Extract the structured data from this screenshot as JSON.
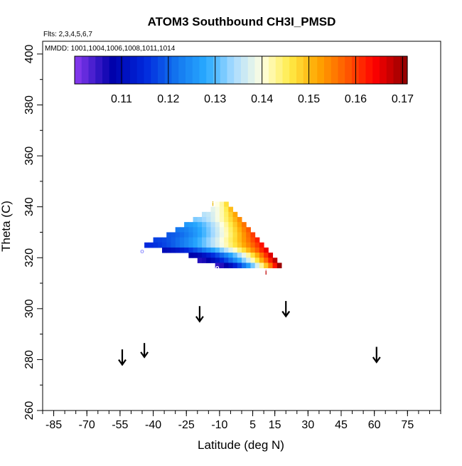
{
  "chart_data": {
    "type": "heatmap",
    "title": "ATOM3 Southbound CH3I_PMSD",
    "subtitle_flights": "Flts: 2,3,4,5,6,7",
    "subtitle_dates": "MMDD: 1001,1004,1006,1008,1011,1014",
    "xlabel": "Latitude (deg N)",
    "ylabel": "Theta (C)",
    "xlim": [
      -90,
      90
    ],
    "ylim": [
      260,
      405
    ],
    "x_ticks": [
      -85,
      -70,
      -55,
      -40,
      -25,
      -10,
      5,
      15,
      30,
      45,
      60,
      75
    ],
    "x_tick_labels": [
      "-85",
      "-70",
      "-55",
      "-40",
      "-25",
      "-10",
      "5",
      "15",
      "30",
      "45",
      "60",
      "75"
    ],
    "y_ticks": [
      260,
      280,
      300,
      320,
      340,
      360,
      380,
      400
    ],
    "y_tick_labels": [
      "260",
      "280",
      "300",
      "320",
      "340",
      "360",
      "380",
      "400"
    ],
    "colorbar": {
      "min": 0.1,
      "max": 0.171,
      "ticks": [
        0.11,
        0.12,
        0.13,
        0.14,
        0.15,
        0.16,
        0.17
      ],
      "tick_labels": [
        "0.11",
        "0.12",
        "0.13",
        "0.14",
        "0.15",
        "0.16",
        "0.17"
      ]
    },
    "grid_cells": {
      "x_step": 2,
      "y_step": 2,
      "rows": [
        {
          "theta": 340,
          "x_start": -12,
          "x_end": -8,
          "v_start": 0.14,
          "v_end": 0.147
        },
        {
          "theta": 338,
          "x_start": -14,
          "x_end": -6,
          "v_start": 0.138,
          "v_end": 0.15
        },
        {
          "theta": 336,
          "x_start": -18,
          "x_end": -4,
          "v_start": 0.135,
          "v_end": 0.152
        },
        {
          "theta": 334,
          "x_start": -22,
          "x_end": -2,
          "v_start": 0.132,
          "v_end": 0.154
        },
        {
          "theta": 332,
          "x_start": -26,
          "x_end": 0,
          "v_start": 0.126,
          "v_end": 0.156
        },
        {
          "theta": 330,
          "x_start": -30,
          "x_end": 2,
          "v_start": 0.122,
          "v_end": 0.158
        },
        {
          "theta": 328,
          "x_start": -34,
          "x_end": 4,
          "v_start": 0.119,
          "v_end": 0.16
        },
        {
          "theta": 326,
          "x_start": -40,
          "x_end": 6,
          "v_start": 0.117,
          "v_end": 0.162
        },
        {
          "theta": 324,
          "x_start": -44,
          "x_end": 8,
          "v_start": 0.115,
          "v_end": 0.163
        },
        {
          "theta": 322,
          "x_start": -36,
          "x_end": 10,
          "v_start": 0.11,
          "v_end": 0.165
        },
        {
          "theta": 320,
          "x_start": -24,
          "x_end": 12,
          "v_start": 0.108,
          "v_end": 0.166
        },
        {
          "theta": 318,
          "x_start": -20,
          "x_end": 14,
          "v_start": 0.106,
          "v_end": 0.168
        },
        {
          "theta": 316,
          "x_start": -12,
          "x_end": 16,
          "v_start": 0.105,
          "v_end": 0.17
        }
      ]
    },
    "markers": [
      {
        "label": "o",
        "lat": -45,
        "theta": 322.8,
        "color": "#9a9aff"
      },
      {
        "label": "o",
        "lat": -11,
        "theta": 316.5,
        "color": "#ffffff"
      },
      {
        "label": "i",
        "lat": 11,
        "theta": 314.5,
        "color": "#c00000"
      },
      {
        "label": "i",
        "lat": -13,
        "theta": 341.5,
        "color": "#e6b800"
      }
    ],
    "arrows": [
      {
        "lat": -54,
        "theta_top": 284,
        "theta_bottom": 278
      },
      {
        "lat": -44,
        "theta_top": 286.5,
        "theta_bottom": 281
      },
      {
        "lat": -19,
        "theta_top": 301,
        "theta_bottom": 295
      },
      {
        "lat": 20,
        "theta_top": 303,
        "theta_bottom": 297
      },
      {
        "lat": 61,
        "theta_top": 285,
        "theta_bottom": 279
      }
    ]
  }
}
